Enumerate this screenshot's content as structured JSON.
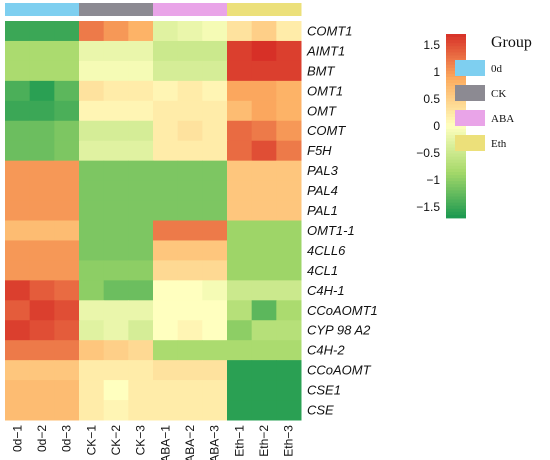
{
  "chart_data": {
    "type": "heatmap",
    "samples": [
      "0d−1",
      "0d−2",
      "0d−3",
      "CK−1",
      "CK−2",
      "CK−3",
      "ABA−1",
      "ABA−2",
      "ABA−3",
      "Eth−1",
      "Eth−2",
      "Eth−3"
    ],
    "sample_groups": [
      "0d",
      "0d",
      "0d",
      "CK",
      "CK",
      "CK",
      "ABA",
      "ABA",
      "ABA",
      "Eth",
      "Eth",
      "Eth"
    ],
    "genes": [
      "COMT1",
      "AIMT1",
      "BMT",
      "OMT1",
      "OMT",
      "COMT",
      "F5H",
      "PAL3",
      "PAL4",
      "PAL1",
      "OMT1-1",
      "4CLL6",
      "4CL1",
      "C4H-1",
      "CCoAOMT1",
      "CYP 98 A2",
      "C4H-2",
      "CCoAOMT",
      "CSE1",
      "CSE"
    ],
    "values": [
      [
        -1.5,
        -1.5,
        -1.5,
        1.2,
        1.0,
        0.8,
        -0.3,
        -0.2,
        -0.1,
        0.3,
        0.5,
        0.2
      ],
      [
        -0.8,
        -0.8,
        -0.8,
        -0.2,
        -0.2,
        -0.2,
        -0.5,
        -0.5,
        -0.5,
        1.6,
        1.7,
        1.6
      ],
      [
        -0.8,
        -0.8,
        -0.8,
        -0.1,
        -0.1,
        -0.1,
        -0.4,
        -0.4,
        -0.4,
        1.6,
        1.6,
        1.6
      ],
      [
        -1.4,
        -1.6,
        -1.3,
        0.3,
        0.2,
        0.2,
        0.1,
        0.2,
        0.1,
        0.9,
        0.9,
        0.8
      ],
      [
        -1.5,
        -1.5,
        -1.4,
        0.1,
        0.1,
        0.1,
        0.2,
        0.2,
        0.2,
        0.7,
        0.9,
        0.8
      ],
      [
        -1.2,
        -1.2,
        -1.1,
        -0.4,
        -0.4,
        -0.4,
        0.2,
        0.3,
        0.2,
        1.3,
        1.2,
        1.0
      ],
      [
        -1.2,
        -1.2,
        -1.1,
        -0.3,
        -0.3,
        -0.3,
        0.2,
        0.2,
        0.2,
        1.3,
        1.5,
        1.2
      ],
      [
        1.0,
        1.0,
        1.0,
        -1.1,
        -1.1,
        -1.1,
        -1.1,
        -1.1,
        -1.1,
        0.6,
        0.6,
        0.6
      ],
      [
        1.0,
        1.0,
        1.0,
        -1.1,
        -1.1,
        -1.1,
        -1.1,
        -1.1,
        -1.1,
        0.6,
        0.6,
        0.6
      ],
      [
        1.0,
        1.0,
        1.0,
        -1.1,
        -1.1,
        -1.1,
        -1.1,
        -1.1,
        -1.1,
        0.6,
        0.6,
        0.6
      ],
      [
        0.7,
        0.7,
        0.7,
        -1.1,
        -1.1,
        -1.1,
        1.2,
        1.2,
        1.2,
        -0.9,
        -0.9,
        -0.9
      ],
      [
        1.0,
        1.0,
        1.0,
        -1.1,
        -1.1,
        -1.1,
        0.6,
        0.6,
        0.6,
        -0.9,
        -0.9,
        -0.9
      ],
      [
        1.0,
        1.0,
        1.0,
        -1.0,
        -1.0,
        -1.0,
        0.4,
        0.4,
        0.4,
        -0.9,
        -0.9,
        -0.9
      ],
      [
        1.6,
        1.4,
        1.3,
        -1.0,
        -1.2,
        -1.2,
        0.0,
        0.0,
        -0.1,
        -0.5,
        -0.5,
        -0.5
      ],
      [
        1.4,
        1.6,
        1.5,
        -0.2,
        -0.2,
        -0.2,
        0.0,
        0.0,
        0.0,
        -0.7,
        -1.3,
        -0.8
      ],
      [
        1.6,
        1.5,
        1.4,
        -0.3,
        -0.2,
        -0.4,
        0.0,
        0.1,
        0.0,
        -1.0,
        -0.7,
        -0.7
      ],
      [
        1.2,
        1.2,
        1.2,
        0.6,
        0.5,
        0.4,
        -0.8,
        -0.8,
        -0.8,
        -0.8,
        -0.8,
        -0.8
      ],
      [
        0.6,
        0.6,
        0.6,
        0.2,
        0.2,
        0.2,
        0.3,
        0.3,
        0.3,
        -1.6,
        -1.6,
        -1.6
      ],
      [
        0.7,
        0.7,
        0.7,
        0.2,
        0.0,
        0.2,
        0.2,
        0.2,
        0.2,
        -1.6,
        -1.6,
        -1.6
      ],
      [
        0.7,
        0.7,
        0.7,
        0.2,
        0.1,
        0.2,
        0.2,
        0.2,
        0.2,
        -1.6,
        -1.6,
        -1.6
      ]
    ],
    "color_scale": {
      "range": [
        -1.7,
        1.7
      ],
      "ticks": [
        1.5,
        1,
        0.5,
        0,
        -0.5,
        -1,
        -1.5
      ],
      "colors": [
        "#1a9850",
        "#a6d96a",
        "#ffffbf",
        "#fdae61",
        "#d73027"
      ]
    },
    "legend": {
      "title": "Group",
      "items": [
        {
          "label": "0d",
          "color": "#7ecff0"
        },
        {
          "label": "CK",
          "color": "#8c8a92"
        },
        {
          "label": "ABA",
          "color": "#e9a4e8"
        },
        {
          "label": "Eth",
          "color": "#ece07a"
        }
      ],
      "placement": "right"
    }
  }
}
